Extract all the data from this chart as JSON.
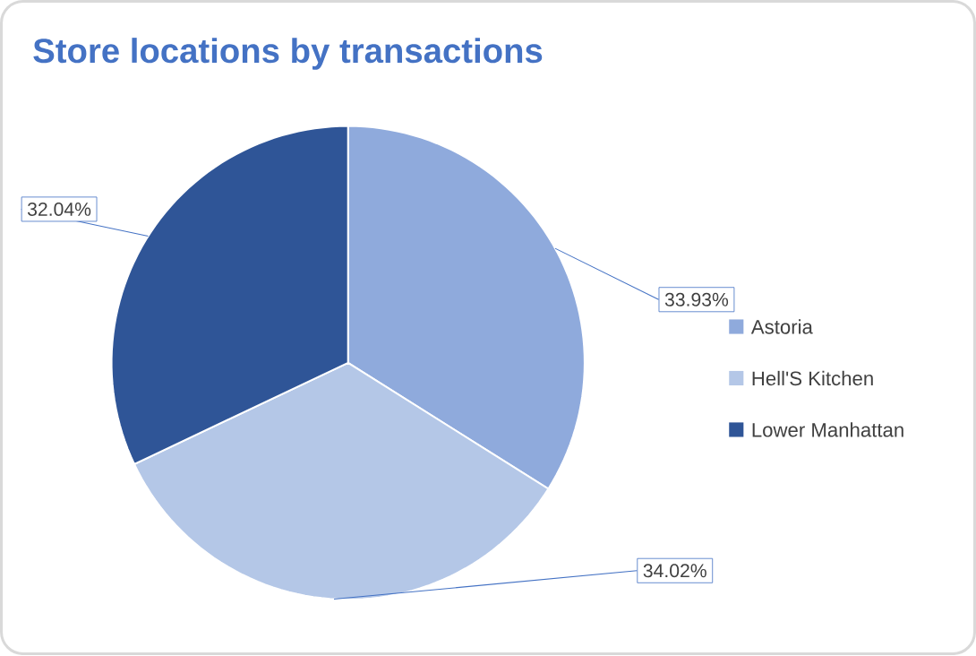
{
  "chart_data": {
    "type": "pie",
    "title": "Store locations by transactions",
    "categories": [
      "Astoria",
      "Hell'S Kitchen",
      "Lower Manhattan"
    ],
    "values": [
      33.93,
      34.02,
      32.04
    ],
    "value_labels": [
      "33.93%",
      "34.02%",
      "32.04%"
    ],
    "colors": [
      "#8faadc",
      "#b4c7e7",
      "#2f5597"
    ],
    "legend": "right"
  }
}
